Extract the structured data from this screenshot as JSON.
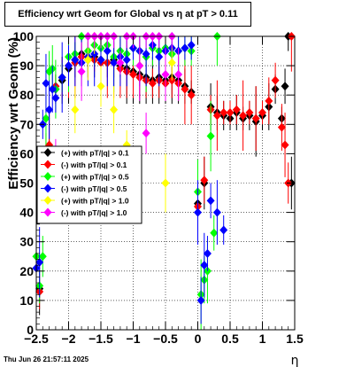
{
  "chart_data": {
    "type": "scatter",
    "title": "Efficiency wrt Geom for Global vs  η at pT > 0.11",
    "xlabel": "η",
    "ylabel": "Efficiency wrt Geom (%)",
    "xlim": [
      -2.5,
      1.5
    ],
    "ylim": [
      0,
      100
    ],
    "xticks": [
      "−2.5",
      "−2",
      "−1.5",
      "−1",
      "−0.5",
      "0",
      "0.5",
      "1",
      "1.5"
    ],
    "yticks": [
      "0",
      "10",
      "20",
      "30",
      "40",
      "50",
      "60",
      "70",
      "80",
      "90",
      "100"
    ],
    "grid": true,
    "legend_position": "middle-left",
    "series": [
      {
        "name": "(+) with pT/|q| > 0.1",
        "color": "#000000",
        "points": [
          [
            -2.45,
            14
          ],
          [
            -2.35,
            52
          ],
          [
            -2.3,
            62
          ],
          [
            -2.2,
            82
          ],
          [
            -2.1,
            85
          ],
          [
            -2.0,
            89
          ],
          [
            -1.9,
            92
          ],
          [
            -1.8,
            94
          ],
          [
            -1.7,
            92
          ],
          [
            -1.6,
            93
          ],
          [
            -1.5,
            92
          ],
          [
            -1.4,
            91
          ],
          [
            -1.3,
            92
          ],
          [
            -1.2,
            90
          ],
          [
            -1.1,
            89
          ],
          [
            -1.0,
            88
          ],
          [
            -0.9,
            87
          ],
          [
            -0.8,
            86
          ],
          [
            -0.7,
            85
          ],
          [
            -0.6,
            86
          ],
          [
            -0.5,
            85
          ],
          [
            -0.4,
            86
          ],
          [
            -0.3,
            85
          ],
          [
            -0.2,
            83
          ],
          [
            -0.1,
            81
          ],
          [
            0.0,
            43
          ],
          [
            0.1,
            50
          ],
          [
            0.2,
            76
          ],
          [
            0.3,
            74
          ],
          [
            0.4,
            73
          ],
          [
            0.5,
            72
          ],
          [
            0.6,
            74
          ],
          [
            0.7,
            72
          ],
          [
            0.8,
            73
          ],
          [
            0.9,
            71
          ],
          [
            1.0,
            73
          ],
          [
            1.1,
            76
          ],
          [
            1.2,
            82
          ],
          [
            1.3,
            72
          ],
          [
            1.35,
            83
          ],
          [
            1.4,
            100
          ],
          [
            1.45,
            50
          ]
        ]
      },
      {
        "name": "(-) with pT/|q| > 0.1",
        "color": "#ff0000",
        "points": [
          [
            -2.45,
            13
          ],
          [
            -2.35,
            55
          ],
          [
            -2.3,
            63
          ],
          [
            -2.2,
            83
          ],
          [
            -2.1,
            86
          ],
          [
            -2.0,
            90
          ],
          [
            -1.9,
            91
          ],
          [
            -1.8,
            93
          ],
          [
            -1.7,
            92
          ],
          [
            -1.6,
            92
          ],
          [
            -1.5,
            91
          ],
          [
            -1.4,
            91
          ],
          [
            -1.3,
            91
          ],
          [
            -1.2,
            89
          ],
          [
            -1.1,
            88
          ],
          [
            -1.0,
            87
          ],
          [
            -0.9,
            86
          ],
          [
            -0.8,
            85
          ],
          [
            -0.7,
            84
          ],
          [
            -0.6,
            85
          ],
          [
            -0.5,
            84
          ],
          [
            -0.4,
            85
          ],
          [
            -0.3,
            84
          ],
          [
            -0.2,
            82
          ],
          [
            -0.1,
            80
          ],
          [
            0.0,
            42
          ],
          [
            0.1,
            51
          ],
          [
            0.2,
            75
          ],
          [
            0.3,
            73
          ],
          [
            0.4,
            74
          ],
          [
            0.5,
            74
          ],
          [
            0.6,
            75
          ],
          [
            0.7,
            73
          ],
          [
            0.8,
            74
          ],
          [
            0.9,
            72
          ],
          [
            1.0,
            74
          ],
          [
            1.1,
            78
          ],
          [
            1.2,
            85
          ],
          [
            1.3,
            69
          ],
          [
            1.35,
            63
          ],
          [
            1.4,
            50
          ],
          [
            1.45,
            100
          ]
        ]
      },
      {
        "name": "(+) with pT/|q| > 0.5",
        "color": "#00ff00",
        "points": [
          [
            -2.5,
            25
          ],
          [
            -2.45,
            15
          ],
          [
            -2.4,
            25
          ],
          [
            -2.35,
            72
          ],
          [
            -2.3,
            88
          ],
          [
            -2.25,
            89
          ],
          [
            -2.2,
            82
          ],
          [
            -2.1,
            86
          ],
          [
            -2.0,
            93
          ],
          [
            -1.9,
            94
          ],
          [
            -1.8,
            100
          ],
          [
            -1.7,
            95
          ],
          [
            -1.6,
            97
          ],
          [
            -1.5,
            96
          ],
          [
            -1.4,
            97
          ],
          [
            -1.3,
            93
          ],
          [
            -1.2,
            95
          ],
          [
            -1.1,
            94
          ],
          [
            -1.0,
            96
          ],
          [
            -0.9,
            95
          ],
          [
            -0.8,
            93
          ],
          [
            -0.7,
            96
          ],
          [
            -0.6,
            95
          ],
          [
            -0.5,
            96
          ],
          [
            -0.4,
            94
          ],
          [
            -0.3,
            95
          ],
          [
            -0.2,
            96
          ],
          [
            -0.1,
            95
          ],
          [
            0.0,
            47
          ],
          [
            0.05,
            12
          ],
          [
            0.1,
            17
          ],
          [
            0.15,
            20
          ],
          [
            0.2,
            66
          ],
          [
            0.25,
            33
          ],
          [
            0.3,
            100
          ]
        ]
      },
      {
        "name": "(-) with pT/|q| > 0.5",
        "color": "#0000ff",
        "points": [
          [
            -2.5,
            21
          ],
          [
            -2.45,
            23
          ],
          [
            -2.4,
            70
          ],
          [
            -2.35,
            84
          ],
          [
            -2.3,
            75
          ],
          [
            -2.25,
            82
          ],
          [
            -2.2,
            79
          ],
          [
            -2.1,
            86
          ],
          [
            -2.0,
            90
          ],
          [
            -1.9,
            92
          ],
          [
            -1.8,
            91
          ],
          [
            -1.7,
            93
          ],
          [
            -1.6,
            94
          ],
          [
            -1.5,
            92
          ],
          [
            -1.4,
            95
          ],
          [
            -1.3,
            91
          ],
          [
            -1.2,
            93
          ],
          [
            -1.1,
            92
          ],
          [
            -1.0,
            96
          ],
          [
            -0.9,
            95
          ],
          [
            -0.8,
            94
          ],
          [
            -0.7,
            97
          ],
          [
            -0.6,
            93
          ],
          [
            -0.5,
            95
          ],
          [
            -0.4,
            96
          ],
          [
            -0.3,
            95
          ],
          [
            -0.2,
            96
          ],
          [
            -0.1,
            97
          ],
          [
            0.0,
            40
          ],
          [
            0.05,
            10
          ],
          [
            0.1,
            22
          ],
          [
            0.15,
            26
          ],
          [
            0.2,
            44
          ],
          [
            0.3,
            40
          ],
          [
            0.4,
            34
          ]
        ]
      },
      {
        "name": "(+) with pT/|q| > 1.0",
        "color": "#ffff00",
        "points": [
          [
            -1.9,
            75
          ],
          [
            -1.7,
            92
          ],
          [
            -1.6,
            100
          ],
          [
            -1.5,
            83
          ],
          [
            -1.3,
            75
          ],
          [
            -1.1,
            63
          ],
          [
            -0.9,
            90
          ],
          [
            -0.5,
            50
          ],
          [
            -0.4,
            91
          ]
        ]
      },
      {
        "name": "(-) with pT/|q| > 1.0",
        "color": "#ff00ff",
        "points": [
          [
            -2.2,
            58
          ],
          [
            -1.8,
            88
          ],
          [
            -1.7,
            100
          ],
          [
            -1.6,
            100
          ],
          [
            -1.5,
            100
          ],
          [
            -1.4,
            100
          ],
          [
            -1.3,
            100
          ],
          [
            -1.2,
            91
          ],
          [
            -1.1,
            100
          ],
          [
            -1.0,
            100
          ],
          [
            -0.9,
            90
          ],
          [
            -0.8,
            100
          ],
          [
            -0.7,
            100
          ],
          [
            -0.6,
            100
          ],
          [
            -0.5,
            87
          ],
          [
            -0.4,
            100
          ],
          [
            -0.3,
            87
          ],
          [
            -0.8,
            67
          ]
        ]
      }
    ]
  },
  "footer": {
    "timestamp": "Thu Jun 26 21:57:11 2025"
  }
}
